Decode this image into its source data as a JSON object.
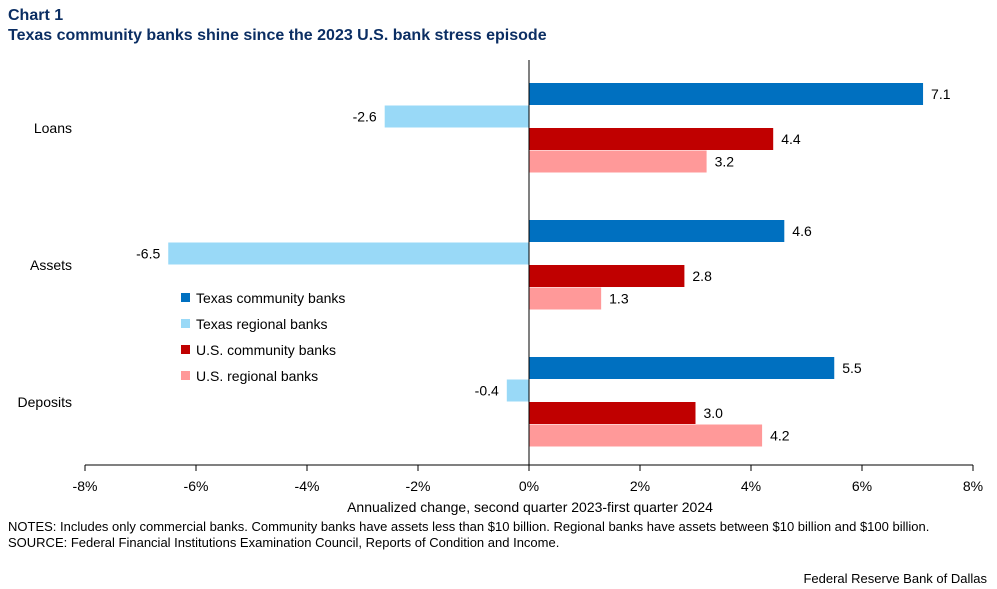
{
  "header": {
    "chart_label": "Chart 1",
    "title": "Texas community banks shine since the 2023 U.S. bank stress episode"
  },
  "chart_data": {
    "type": "bar",
    "orientation": "horizontal",
    "categories": [
      "Loans",
      "Assets",
      "Deposits"
    ],
    "series": [
      {
        "name": "Texas community banks",
        "color": "#0070c0",
        "values": [
          7.1,
          4.6,
          5.5
        ]
      },
      {
        "name": "Texas regional banks",
        "color": "#99d9f7",
        "values": [
          -2.6,
          -6.5,
          -0.4
        ]
      },
      {
        "name": "U.S. community banks",
        "color": "#c00000",
        "values": [
          4.4,
          2.8,
          3.0
        ]
      },
      {
        "name": "U.S. regional banks",
        "color": "#ff9999",
        "values": [
          3.2,
          1.3,
          4.2
        ]
      }
    ],
    "xlim": [
      -8,
      8
    ],
    "xticks": [
      -8,
      -6,
      -4,
      -2,
      0,
      2,
      4,
      6,
      8
    ],
    "tick_suffix": "%",
    "xlabel": "Annualized  change, second quarter 2023-first quarter 2024",
    "legend_position": "center-left",
    "grid": false
  },
  "notes": {
    "line1": "NOTES: Includes only commercial banks. Community banks have assets less than $10 billion.  Regional banks have assets between $10 billion and $100 billion.",
    "line2": "SOURCE: Federal Financial Institutions Examination Council, Reports of Condition and Income."
  },
  "credit": "Federal Reserve Bank of Dallas"
}
